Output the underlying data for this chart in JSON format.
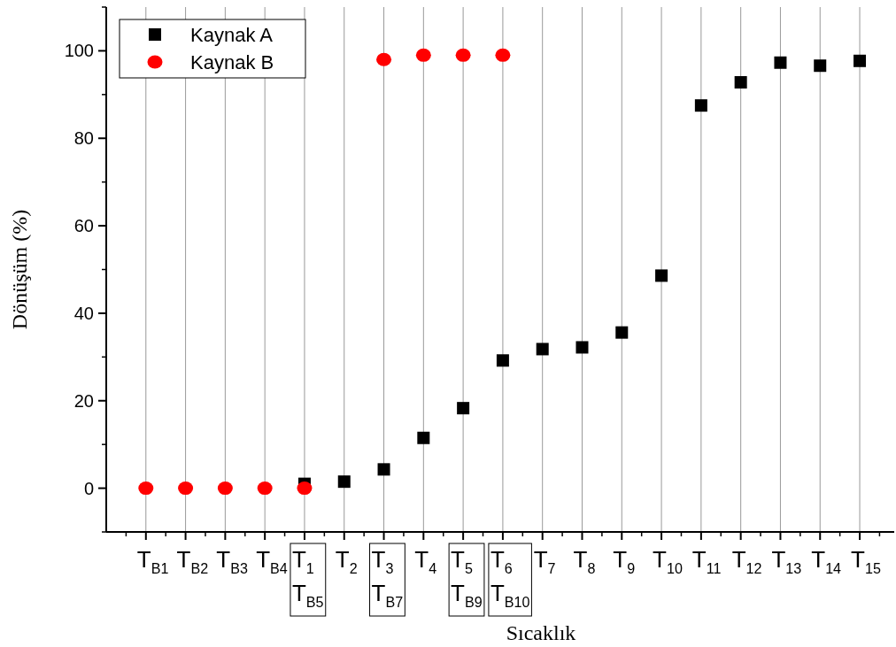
{
  "chart_data": {
    "type": "scatter",
    "xlabel": "Sıcaklık",
    "ylabel": "Dönüşüm (%)",
    "categories": [
      "T$_{B1}$",
      "T$_{B2}$",
      "T$_{B3}$",
      "T$_{B4}$",
      "T$_{1}$\nT$_{B5}$",
      "T$_{2}$",
      "T$_{3}$\nT$_{B7}$",
      "T$_{4}$",
      "T$_{5}$\nT$_{B9}$",
      "T$_{6}$\nT$_{B10}$",
      "T$_{7}$",
      "T$_{8}$",
      "T$_{9}$",
      "T$_{10}$",
      "T$_{11}$",
      "T$_{12}$",
      "T$_{13}$",
      "T$_{14}$",
      "T$_{15}$"
    ],
    "series": [
      {
        "name": "Kaynak A",
        "color": "#000000",
        "marker": "square",
        "values": [
          null,
          null,
          null,
          null,
          1,
          1.5,
          4.3,
          11.5,
          18.3,
          29.2,
          31.8,
          32.2,
          35.6,
          48.6,
          87.5,
          92.8,
          97.3,
          96.6,
          97.7
        ]
      },
      {
        "name": "Kaynak B",
        "color": "#ff0000",
        "marker": "circle",
        "values": [
          0,
          0,
          0,
          0,
          0,
          null,
          98,
          99,
          99,
          99,
          null,
          null,
          null,
          null,
          null,
          null,
          null,
          null,
          null
        ]
      }
    ],
    "ylim": [
      -10,
      110
    ],
    "yticks": [
      0,
      20,
      40,
      60,
      80,
      100
    ],
    "grid": "x",
    "legend": "top left"
  }
}
